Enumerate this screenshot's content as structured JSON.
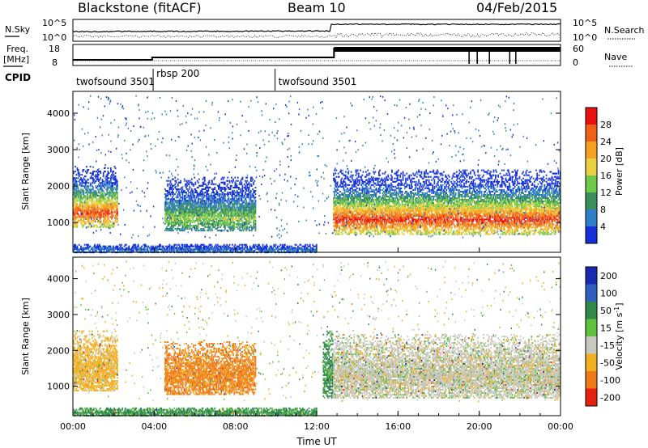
{
  "header": {
    "title": "Blackstone (fitACF)",
    "beam": "Beam 10",
    "date": "04/Feb/2015"
  },
  "top_panel": {
    "left_label": "N.Sky",
    "right_label": "N.Search",
    "left_ticks": [
      "10^5",
      "10^0"
    ],
    "right_ticks": [
      "10^5",
      "10^0"
    ]
  },
  "freq_panel": {
    "left_label_line1": "Freq.",
    "left_label_line2": "[MHz]",
    "right_label": "Nave",
    "left_ticks": [
      "18",
      "8"
    ],
    "right_ticks": [
      "60",
      "0"
    ]
  },
  "cpid": {
    "label": "CPID",
    "segments": [
      {
        "text": "twofsound 3501",
        "start_hour": 0.0
      },
      {
        "text": "rbsp 200",
        "start_hour": 3.95
      },
      {
        "text": "twofsound 3501",
        "start_hour": 9.95
      }
    ]
  },
  "chart_data": [
    {
      "type": "heatmap",
      "name": "power",
      "xlabel": "Time UT",
      "ylabel": "Slant Range [km]",
      "x_ticks": [
        "00:00",
        "04:00",
        "08:00",
        "12:00",
        "16:00",
        "20:00",
        "00:00"
      ],
      "xlim_hours": [
        0,
        24
      ],
      "y_ticks": [
        1000,
        2000,
        3000,
        4000
      ],
      "ylim": [
        180,
        4600
      ],
      "colorbar": {
        "label": "Power [dB]",
        "ticks": [
          4,
          8,
          12,
          16,
          20,
          24,
          28
        ],
        "range": [
          0,
          30
        ],
        "colors": [
          "#1530d8",
          "#2f7fc8",
          "#3a8f5a",
          "#70c848",
          "#e8d040",
          "#f5a020",
          "#f06018",
          "#e81010"
        ]
      },
      "echo_regions": [
        {
          "t": [
            0.0,
            2.2
          ],
          "r": [
            900,
            2600
          ],
          "peak_db": 26
        },
        {
          "t": [
            4.5,
            9.0
          ],
          "r": [
            800,
            2300
          ],
          "peak_db": 14
        },
        {
          "t": [
            12.8,
            24.0
          ],
          "r": [
            700,
            2500
          ],
          "peak_db": 27
        },
        {
          "t": [
            0.0,
            12.0
          ],
          "r": [
            200,
            450
          ],
          "peak_db": 6
        }
      ]
    },
    {
      "type": "heatmap",
      "name": "velocity",
      "xlabel": "Time UT",
      "ylabel": "Slant Range [km]",
      "x_ticks": [
        "00:00",
        "04:00",
        "08:00",
        "12:00",
        "16:00",
        "20:00",
        "00:00"
      ],
      "xlim_hours": [
        0,
        24
      ],
      "y_ticks": [
        1000,
        2000,
        3000,
        4000
      ],
      "ylim": [
        180,
        4600
      ],
      "colorbar": {
        "label": "Velocity [m s^-1]",
        "ticks": [
          "200",
          "100",
          "50",
          "15",
          "-15",
          "-50",
          "-100",
          "-200"
        ],
        "range": [
          -250,
          250
        ],
        "colors": [
          "#1a2ab0",
          "#2f5fc0",
          "#2f8a4a",
          "#60c040",
          "#c8c8c0",
          "#f0b020",
          "#f07a18",
          "#e82010"
        ]
      },
      "echo_regions": [
        {
          "t": [
            0.0,
            2.2
          ],
          "r": [
            900,
            2600
          ],
          "mean_vel": -30
        },
        {
          "t": [
            4.5,
            9.0
          ],
          "r": [
            800,
            2300
          ],
          "mean_vel": -60
        },
        {
          "t": [
            12.3,
            12.8
          ],
          "r": [
            700,
            2600
          ],
          "mean_vel": 40
        },
        {
          "t": [
            12.8,
            24.0
          ],
          "r": [
            700,
            2500
          ],
          "mean_vel": 0
        },
        {
          "t": [
            0.0,
            12.0
          ],
          "r": [
            200,
            450
          ],
          "mean_vel": 40
        }
      ]
    }
  ]
}
